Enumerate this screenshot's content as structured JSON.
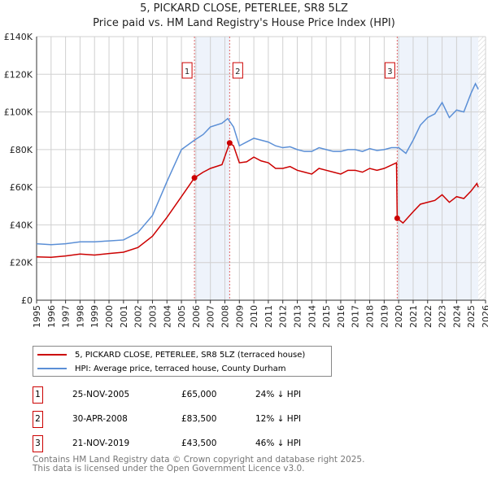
{
  "chart_data": {
    "type": "line",
    "title": "5, PICKARD CLOSE, PETERLEE, SR8 5LZ",
    "subtitle": "Price paid vs. HM Land Registry's House Price Index (HPI)",
    "xlim": [
      1995,
      2026
    ],
    "ylim": [
      0,
      140000
    ],
    "x_ticks": [
      "1995",
      "1996",
      "1997",
      "1998",
      "1999",
      "2000",
      "2001",
      "2002",
      "2003",
      "2004",
      "2005",
      "2006",
      "2007",
      "2008",
      "2009",
      "2010",
      "2011",
      "2012",
      "2013",
      "2014",
      "2015",
      "2016",
      "2017",
      "2018",
      "2019",
      "2020",
      "2021",
      "2022",
      "2023",
      "2024",
      "2025",
      "2026"
    ],
    "y_ticks": [
      {
        "v": 0,
        "label": "£0"
      },
      {
        "v": 20000,
        "label": "£20K"
      },
      {
        "v": 40000,
        "label": "£40K"
      },
      {
        "v": 60000,
        "label": "£60K"
      },
      {
        "v": 80000,
        "label": "£80K"
      },
      {
        "v": 100000,
        "label": "£100K"
      },
      {
        "v": 120000,
        "label": "£120K"
      },
      {
        "v": 140000,
        "label": "£140K"
      }
    ],
    "grid": true,
    "legend_placement": "below",
    "series": [
      {
        "name": "5, PICKARD CLOSE, PETERLEE, SR8 5LZ (terraced house)",
        "color": "#cc0000",
        "points": [
          [
            1995,
            23000
          ],
          [
            1996,
            22800
          ],
          [
            1997,
            23500
          ],
          [
            1998,
            24500
          ],
          [
            1999,
            24000
          ],
          [
            2000,
            24800
          ],
          [
            2001,
            25500
          ],
          [
            2002,
            28000
          ],
          [
            2003,
            34000
          ],
          [
            2004,
            44000
          ],
          [
            2005,
            55000
          ],
          [
            2005.9,
            65000
          ],
          [
            2006.5,
            68000
          ],
          [
            2007,
            70000
          ],
          [
            2007.8,
            72000
          ],
          [
            2008.33,
            83500
          ],
          [
            2008.6,
            82000
          ],
          [
            2009,
            73000
          ],
          [
            2009.5,
            73500
          ],
          [
            2010,
            76000
          ],
          [
            2010.5,
            74000
          ],
          [
            2011,
            73000
          ],
          [
            2011.5,
            70000
          ],
          [
            2012,
            70000
          ],
          [
            2012.5,
            71000
          ],
          [
            2013,
            69000
          ],
          [
            2013.5,
            68000
          ],
          [
            2014,
            67000
          ],
          [
            2014.5,
            70000
          ],
          [
            2015,
            69000
          ],
          [
            2015.5,
            68000
          ],
          [
            2016,
            67000
          ],
          [
            2016.5,
            69000
          ],
          [
            2017,
            69000
          ],
          [
            2017.5,
            68000
          ],
          [
            2018,
            70000
          ],
          [
            2018.5,
            69000
          ],
          [
            2019,
            70000
          ],
          [
            2019.85,
            73000
          ],
          [
            2019.9,
            43500
          ],
          [
            2020.3,
            41000
          ],
          [
            2021,
            47000
          ],
          [
            2021.5,
            51000
          ],
          [
            2022,
            52000
          ],
          [
            2022.5,
            53000
          ],
          [
            2023,
            56000
          ],
          [
            2023.5,
            52000
          ],
          [
            2024,
            55000
          ],
          [
            2024.5,
            54000
          ],
          [
            2025,
            58000
          ],
          [
            2025.4,
            62000
          ],
          [
            2025.5,
            60000
          ]
        ]
      },
      {
        "name": "HPI: Average price, terraced house, County Durham",
        "color": "#5b8fd6",
        "points": [
          [
            1995,
            30000
          ],
          [
            1996,
            29500
          ],
          [
            1997,
            30000
          ],
          [
            1998,
            31000
          ],
          [
            1999,
            31000
          ],
          [
            2000,
            31500
          ],
          [
            2001,
            32000
          ],
          [
            2002,
            36000
          ],
          [
            2003,
            45000
          ],
          [
            2004,
            63000
          ],
          [
            2005,
            80000
          ],
          [
            2005.9,
            85000
          ],
          [
            2006.5,
            88000
          ],
          [
            2007,
            92000
          ],
          [
            2007.8,
            94000
          ],
          [
            2008.2,
            96500
          ],
          [
            2008.6,
            92000
          ],
          [
            2009,
            82000
          ],
          [
            2009.5,
            84000
          ],
          [
            2010,
            86000
          ],
          [
            2010.5,
            85000
          ],
          [
            2011,
            84000
          ],
          [
            2011.5,
            82000
          ],
          [
            2012,
            81000
          ],
          [
            2012.5,
            81500
          ],
          [
            2013,
            80000
          ],
          [
            2013.5,
            79000
          ],
          [
            2014,
            79000
          ],
          [
            2014.5,
            81000
          ],
          [
            2015,
            80000
          ],
          [
            2015.5,
            79000
          ],
          [
            2016,
            79000
          ],
          [
            2016.5,
            80000
          ],
          [
            2017,
            80000
          ],
          [
            2017.5,
            79000
          ],
          [
            2018,
            80500
          ],
          [
            2018.5,
            79500
          ],
          [
            2019,
            80000
          ],
          [
            2019.5,
            81000
          ],
          [
            2020,
            81000
          ],
          [
            2020.5,
            78000
          ],
          [
            2021,
            85000
          ],
          [
            2021.5,
            93000
          ],
          [
            2022,
            97000
          ],
          [
            2022.5,
            99000
          ],
          [
            2023,
            105000
          ],
          [
            2023.5,
            97000
          ],
          [
            2024,
            101000
          ],
          [
            2024.5,
            100000
          ],
          [
            2025,
            110000
          ],
          [
            2025.3,
            115000
          ],
          [
            2025.5,
            112000
          ]
        ]
      }
    ],
    "sales": [
      {
        "id": "1",
        "x": 2005.9,
        "price": 65000,
        "date": "25-NOV-2005",
        "price_label": "£65,000",
        "hpi": "24% ↓ HPI"
      },
      {
        "id": "2",
        "x": 2008.33,
        "price": 83500,
        "date": "30-APR-2008",
        "price_label": "£83,500",
        "hpi": "12% ↓ HPI"
      },
      {
        "id": "3",
        "x": 2019.9,
        "price": 43500,
        "date": "21-NOV-2019",
        "price_label": "£43,500",
        "hpi": "46% ↓ HPI"
      }
    ]
  },
  "footer": {
    "line1": "Contains HM Land Registry data © Crown copyright and database right 2025.",
    "line2": "This data is licensed under the Open Government Licence v3.0."
  }
}
